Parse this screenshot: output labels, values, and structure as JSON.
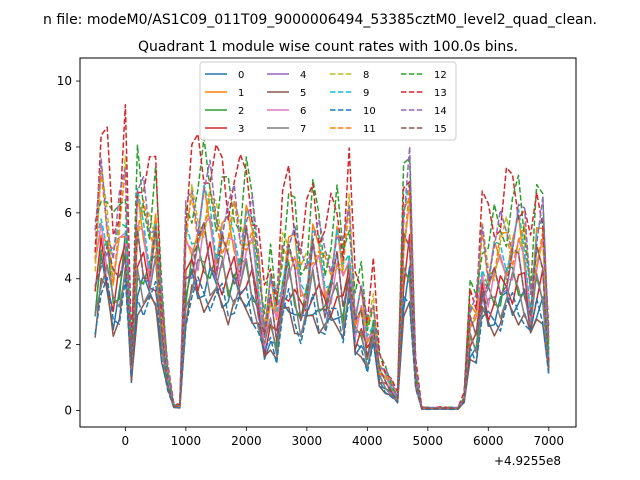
{
  "chart_data": {
    "type": "line",
    "suptitle": "n file: modeM0/AS1C09_011T09_9000006494_53385cztM0_level2_quad_clean.",
    "title": "Quadrant 1 module wise count rates with 100.0s bins.",
    "xlabel": "",
    "ylabel": "",
    "x_offset_label": "+4.9255e8",
    "xlim": [
      -750,
      7450
    ],
    "ylim": [
      -0.5,
      10.7
    ],
    "xticks": [
      0,
      1000,
      2000,
      3000,
      4000,
      5000,
      6000,
      7000
    ],
    "yticks": [
      0,
      2,
      4,
      6,
      8,
      10
    ],
    "grid": false,
    "legend_position": "top-center",
    "legend_columns": 4,
    "x": [
      -500,
      -400,
      -300,
      -200,
      -100,
      0,
      100,
      200,
      300,
      400,
      500,
      600,
      700,
      800,
      900,
      1000,
      1100,
      1200,
      1300,
      1400,
      1500,
      1600,
      1700,
      1800,
      1900,
      2000,
      2100,
      2200,
      2300,
      2400,
      2500,
      2600,
      2700,
      2800,
      2900,
      3000,
      3100,
      3200,
      3300,
      3400,
      3500,
      3600,
      3700,
      3800,
      3900,
      4000,
      4100,
      4200,
      4300,
      4400,
      4500,
      4600,
      4700,
      4800,
      4900,
      5000,
      5100,
      5200,
      5300,
      5400,
      5500,
      5600,
      5700,
      5800,
      5900,
      6000,
      6100,
      6200,
      6300,
      6400,
      6500,
      6600,
      6700,
      6800,
      6900,
      7000
    ],
    "base_profile": [
      0.6,
      0.85,
      0.78,
      0.6,
      0.7,
      0.88,
      0.2,
      0.8,
      0.75,
      0.7,
      0.78,
      0.4,
      0.15,
      0.02,
      0.02,
      0.68,
      0.78,
      0.78,
      0.82,
      0.8,
      0.74,
      0.76,
      0.72,
      0.74,
      0.7,
      0.78,
      0.7,
      0.55,
      0.35,
      0.5,
      0.38,
      0.62,
      0.72,
      0.65,
      0.52,
      0.58,
      0.72,
      0.63,
      0.55,
      0.6,
      0.68,
      0.55,
      0.75,
      0.4,
      0.45,
      0.3,
      0.42,
      0.18,
      0.14,
      0.1,
      0.05,
      0.75,
      0.85,
      0.15,
      0.01,
      0.01,
      0.01,
      0.01,
      0.01,
      0.01,
      0.01,
      0.05,
      0.4,
      0.38,
      0.65,
      0.58,
      0.62,
      0.64,
      0.68,
      0.7,
      0.72,
      0.66,
      0.48,
      0.7,
      0.7,
      0.25
    ],
    "series": [
      {
        "name": "0",
        "color": "#1f77b4",
        "style": "solid",
        "scale": 5.6
      },
      {
        "name": "1",
        "color": "#ff7f0e",
        "style": "solid",
        "scale": 8.3
      },
      {
        "name": "2",
        "color": "#2ca02c",
        "style": "solid",
        "scale": 6.6
      },
      {
        "name": "3",
        "color": "#d62728",
        "style": "solid",
        "scale": 6.4
      },
      {
        "name": "4",
        "color": "#9467bd",
        "style": "solid",
        "scale": 7.1
      },
      {
        "name": "5",
        "color": "#8c564b",
        "style": "solid",
        "scale": 5.0
      },
      {
        "name": "6",
        "color": "#e377c2",
        "style": "solid",
        "scale": 7.5
      },
      {
        "name": "7",
        "color": "#7f7f7f",
        "style": "solid",
        "scale": 6.0
      },
      {
        "name": "8",
        "color": "#bcbd22",
        "style": "dashed",
        "scale": 8.8
      },
      {
        "name": "9",
        "color": "#17becf",
        "style": "dashed",
        "scale": 8.5
      },
      {
        "name": "10",
        "color": "#1f77b4",
        "style": "dashed",
        "scale": 5.2
      },
      {
        "name": "11",
        "color": "#ff7f0e",
        "style": "dashed",
        "scale": 8.6
      },
      {
        "name": "12",
        "color": "#2ca02c",
        "style": "dashed",
        "scale": 10.1
      },
      {
        "name": "13",
        "color": "#d62728",
        "style": "dashed",
        "scale": 11.1
      },
      {
        "name": "14",
        "color": "#9467bd",
        "style": "dashed",
        "scale": 9.5
      },
      {
        "name": "15",
        "color": "#8c564b",
        "style": "dashed",
        "scale": 7.2
      }
    ]
  }
}
